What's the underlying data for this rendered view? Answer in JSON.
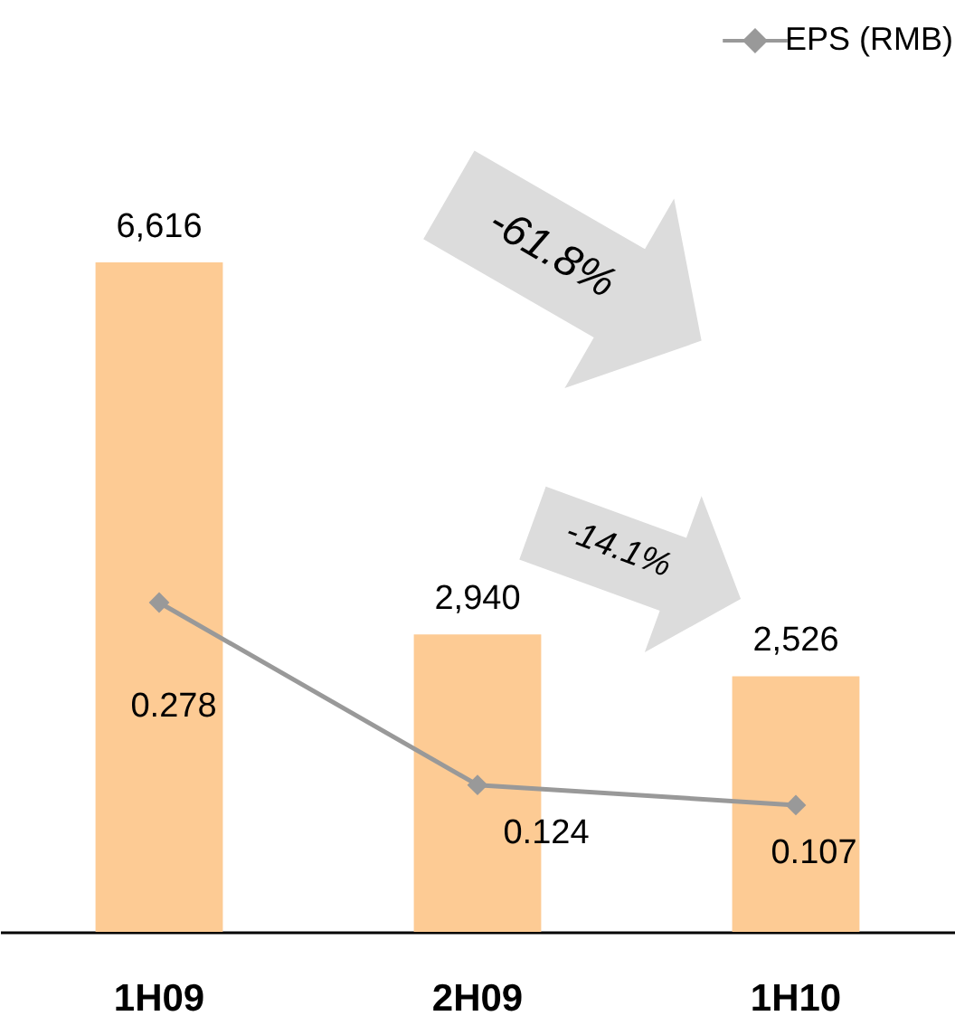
{
  "chart_data": {
    "type": "bar",
    "categories": [
      "1H09",
      "2H09",
      "1H10"
    ],
    "series": [
      {
        "color": "#fdcb94",
        "values": [
          6616,
          2940,
          2526
        ],
        "value_labels": [
          "6,616",
          "2,940",
          "2,526"
        ]
      },
      {
        "type": "line",
        "name": "EPS (RMB)",
        "axis": "y2",
        "color": "#999999",
        "values": [
          0.278,
          0.124,
          0.107
        ]
      }
    ],
    "data_labels": true,
    "marker": "diamond",
    "legend": "top right",
    "tick_labels": "x",
    "annotations": [
      "-61.8%",
      "-14.1%"
    ]
  }
}
